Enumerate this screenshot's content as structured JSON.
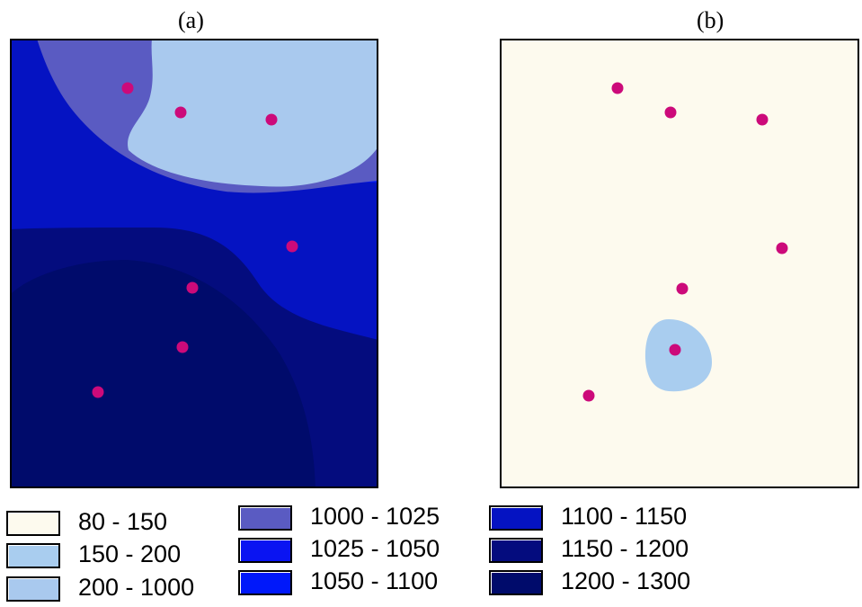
{
  "panels": [
    {
      "id": "a",
      "title": "(a)"
    },
    {
      "id": "b",
      "title": "(b)"
    }
  ],
  "legend": [
    {
      "label": "80 - 150",
      "color": "#FDFAEE"
    },
    {
      "label": "150 - 200",
      "color": "#A9CDEF"
    },
    {
      "label": "200 - 1000",
      "color": "#A9C9EE"
    },
    {
      "label": "1000 - 1025",
      "color": "#5A5BC2"
    },
    {
      "label": "1025 - 1050",
      "color": "#0A14F2"
    },
    {
      "label": "1050 - 1100",
      "color": "#0018FA"
    },
    {
      "label": "1100 - 1150",
      "color": "#0513C2"
    },
    {
      "label": "1150 - 1200",
      "color": "#040C7E"
    },
    {
      "label": "1200 - 1300",
      "color": "#000B6B"
    }
  ],
  "point_color": "#CC0A7A",
  "map_a_point_count": 7,
  "map_b_point_count": 7
}
